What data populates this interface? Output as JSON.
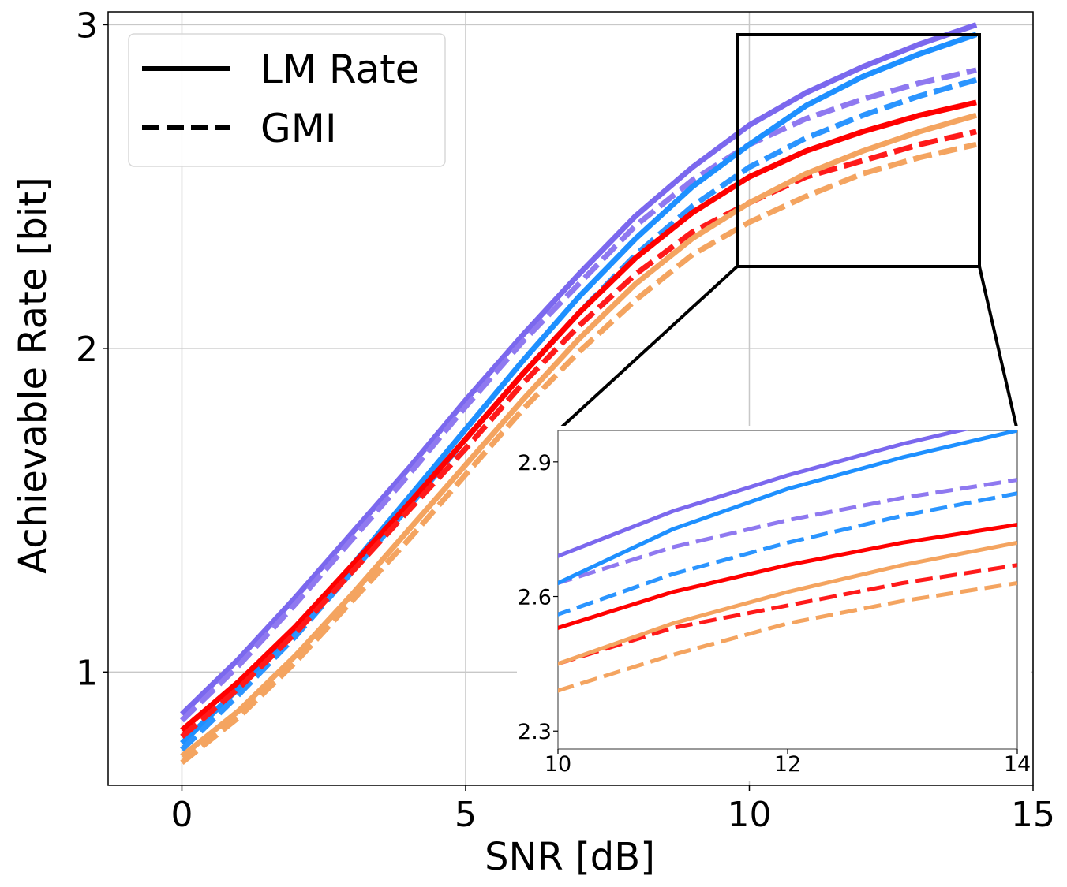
{
  "chart_data": {
    "type": "line",
    "xlabel": "SNR [dB]",
    "ylabel": "Achievable Rate [bit]",
    "xlim": [
      -1.3,
      15
    ],
    "ylim": [
      0.65,
      3.04
    ],
    "xticks": [
      0,
      5,
      10,
      15
    ],
    "yticks": [
      1,
      2,
      3
    ],
    "grid": true,
    "legend": {
      "location": "top-left",
      "entries": [
        {
          "label": "LM Rate",
          "style": "solid"
        },
        {
          "label": "GMI",
          "style": "dashed"
        }
      ]
    },
    "x": [
      0,
      1,
      2,
      3,
      4,
      5,
      6,
      7,
      8,
      9,
      10,
      11,
      12,
      13,
      14
    ],
    "series": [
      {
        "name": "purple-lm",
        "style": "solid",
        "color": "#7b68ee",
        "values": [
          0.87,
          1.04,
          1.23,
          1.43,
          1.63,
          1.84,
          2.04,
          2.23,
          2.41,
          2.56,
          2.69,
          2.79,
          2.87,
          2.94,
          3.0
        ]
      },
      {
        "name": "purple-gmi",
        "style": "dashed",
        "color": "#8f79f0",
        "values": [
          0.85,
          1.02,
          1.21,
          1.41,
          1.61,
          1.82,
          2.02,
          2.2,
          2.38,
          2.52,
          2.63,
          2.71,
          2.77,
          2.82,
          2.86
        ]
      },
      {
        "name": "blue-lm",
        "style": "solid",
        "color": "#1e90ff",
        "values": [
          0.78,
          0.95,
          1.13,
          1.33,
          1.54,
          1.75,
          1.96,
          2.16,
          2.34,
          2.5,
          2.63,
          2.75,
          2.84,
          2.91,
          2.97
        ]
      },
      {
        "name": "blue-gmi",
        "style": "dashed",
        "color": "#2b95ff",
        "values": [
          0.76,
          0.93,
          1.11,
          1.31,
          1.51,
          1.72,
          1.92,
          2.11,
          2.29,
          2.44,
          2.56,
          2.65,
          2.72,
          2.78,
          2.83
        ]
      },
      {
        "name": "red-lm",
        "style": "solid",
        "color": "#ff0000",
        "values": [
          0.82,
          0.97,
          1.14,
          1.33,
          1.52,
          1.72,
          1.92,
          2.11,
          2.28,
          2.42,
          2.53,
          2.61,
          2.67,
          2.72,
          2.76
        ]
      },
      {
        "name": "red-gmi",
        "style": "dashed",
        "color": "#ff1a1a",
        "values": [
          0.8,
          0.95,
          1.12,
          1.31,
          1.5,
          1.69,
          1.89,
          2.07,
          2.23,
          2.36,
          2.45,
          2.53,
          2.58,
          2.63,
          2.67
        ]
      },
      {
        "name": "orange-lm",
        "style": "solid",
        "color": "#f4a460",
        "values": [
          0.74,
          0.88,
          1.05,
          1.24,
          1.44,
          1.64,
          1.84,
          2.03,
          2.2,
          2.34,
          2.45,
          2.54,
          2.61,
          2.67,
          2.72
        ]
      },
      {
        "name": "orange-gmi",
        "style": "dashed",
        "color": "#f4a460",
        "values": [
          0.72,
          0.86,
          1.03,
          1.22,
          1.41,
          1.61,
          1.81,
          1.99,
          2.15,
          2.29,
          2.39,
          2.47,
          2.54,
          2.59,
          2.63
        ]
      }
    ],
    "inset": {
      "xlim": [
        10,
        14
      ],
      "ylim": [
        2.26,
        2.97
      ],
      "xticks": [
        10,
        12,
        14
      ],
      "yticks": [
        2.3,
        2.6,
        2.9
      ],
      "tick_labels_x": [
        "10",
        "12",
        "14"
      ],
      "tick_labels_y": [
        "2.3",
        "2.6",
        "2.9"
      ]
    }
  }
}
